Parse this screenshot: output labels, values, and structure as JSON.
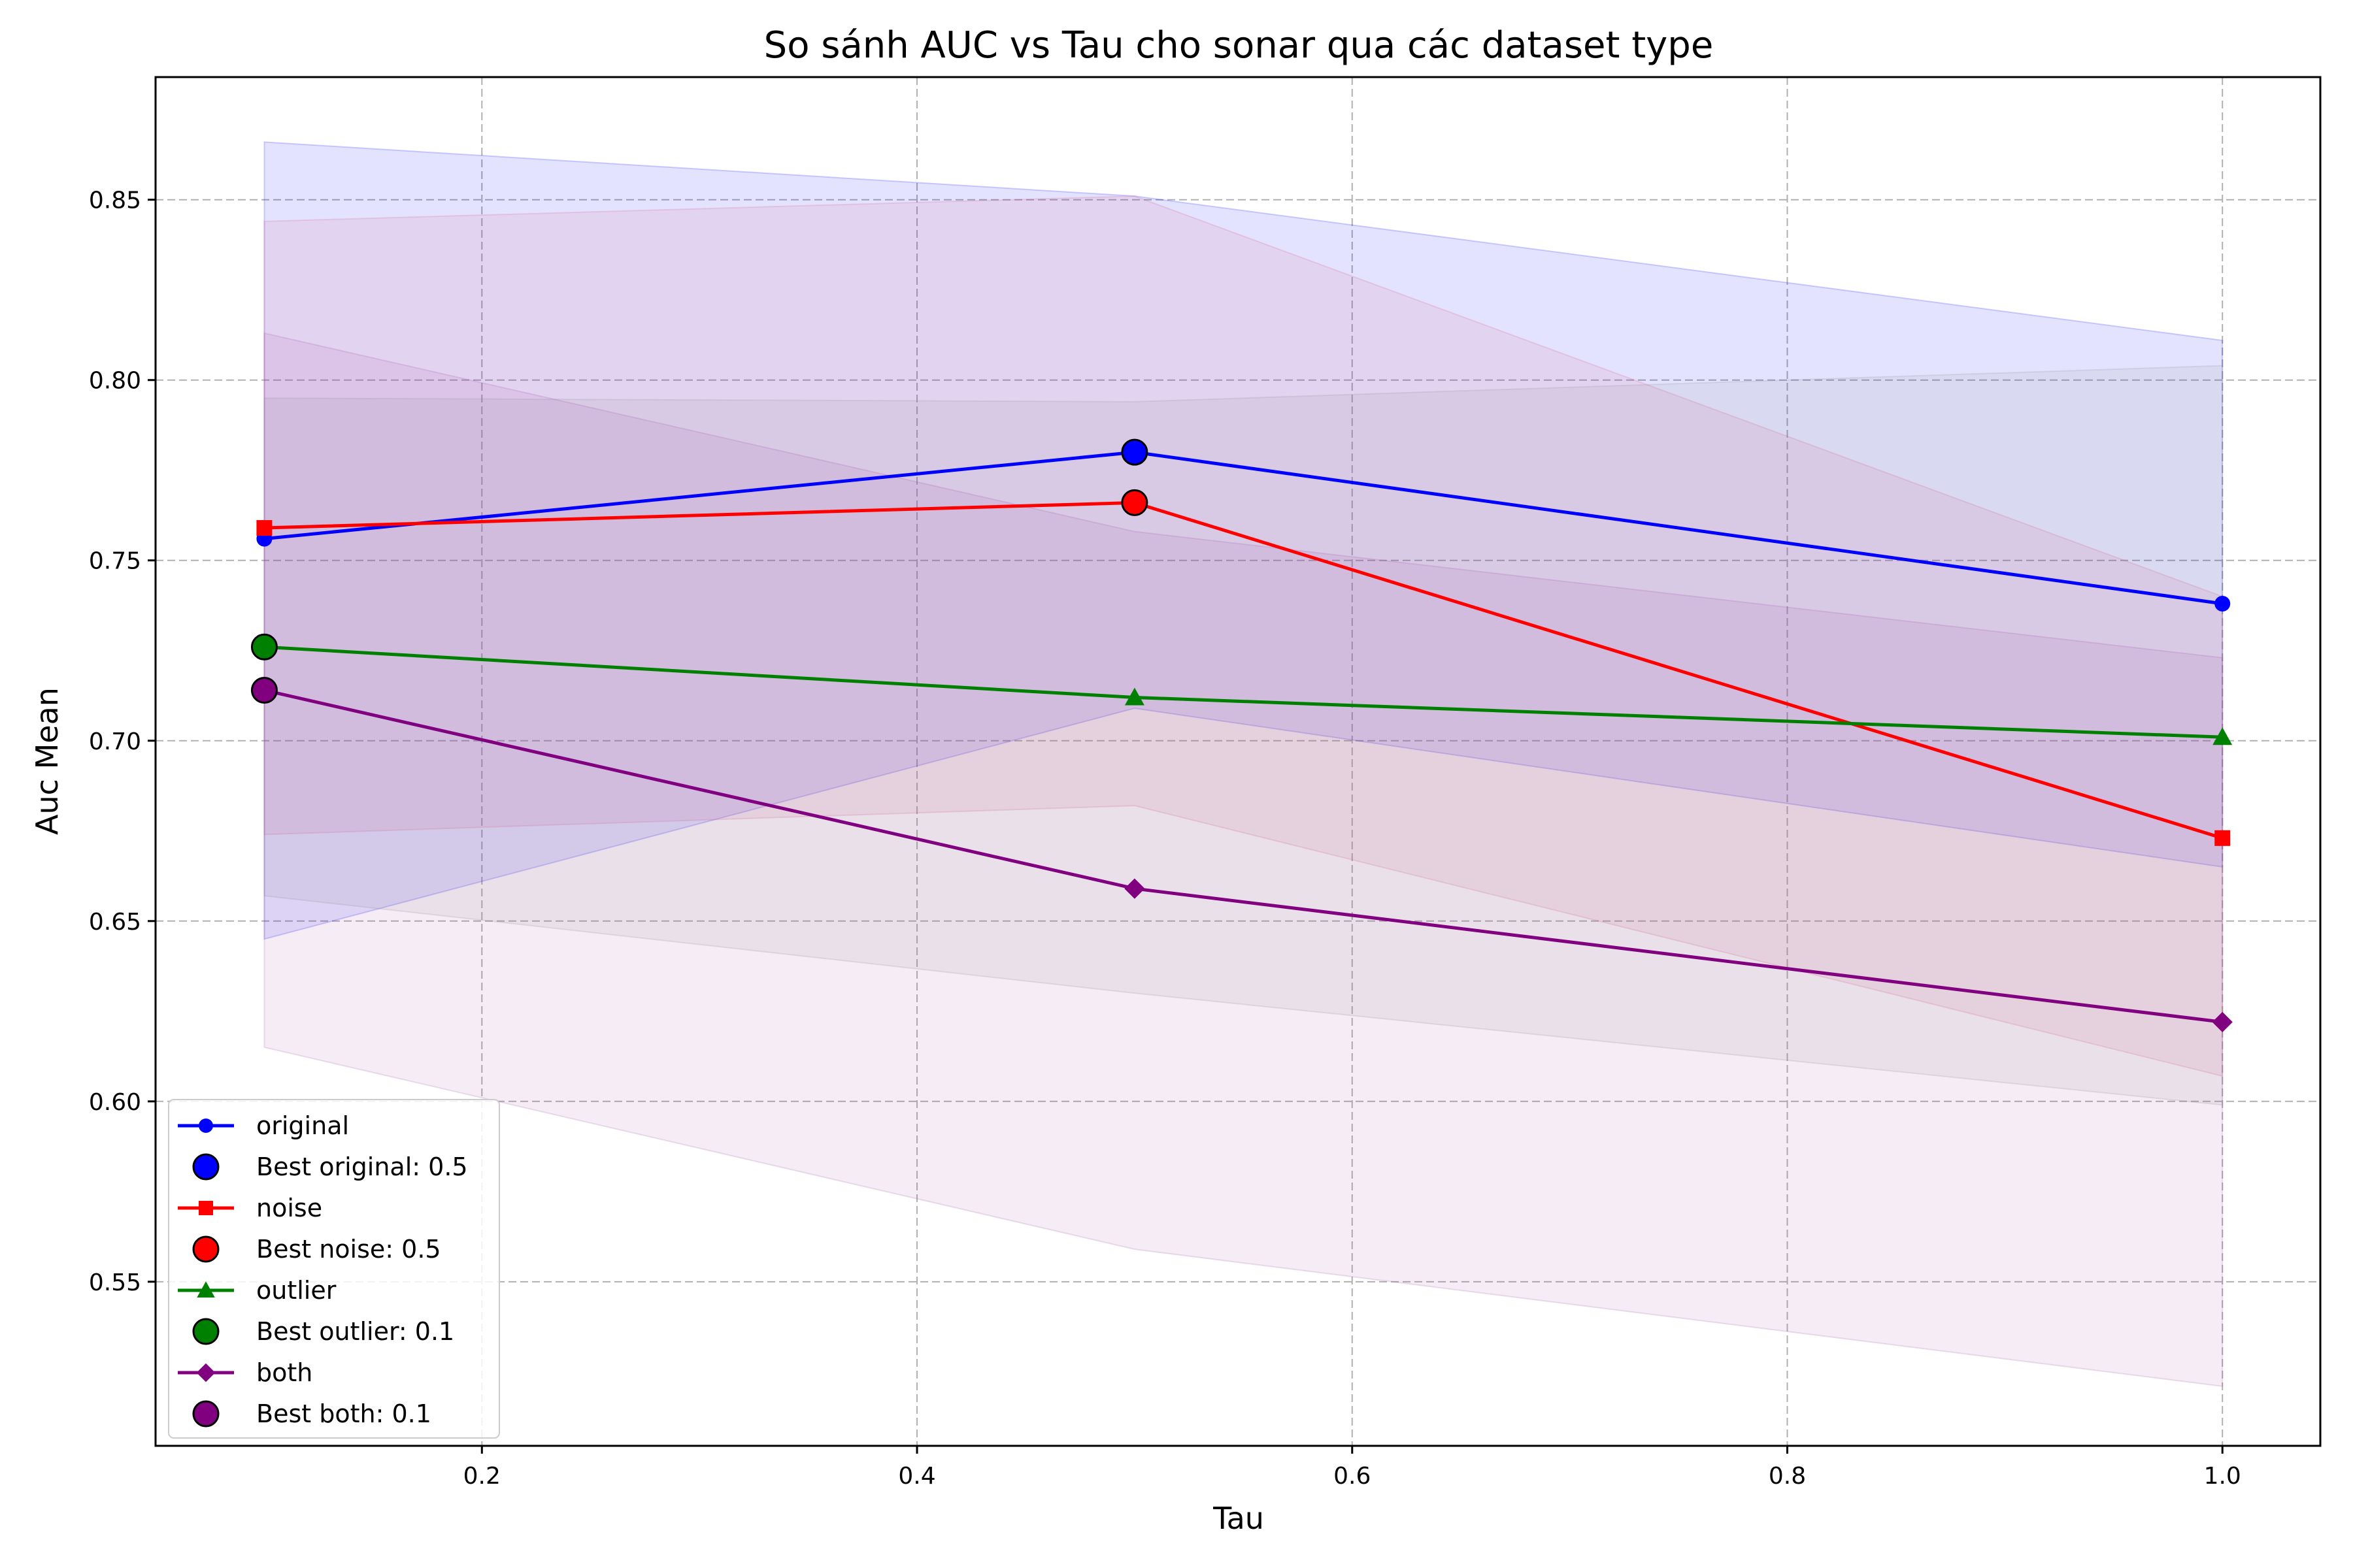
{
  "chart_data": {
    "type": "line",
    "title": "So sánh AUC vs Tau cho sonar qua các dataset type",
    "xlabel": "Tau",
    "ylabel": "Auc Mean",
    "xlim": [
      0.05,
      1.045
    ],
    "ylim": [
      0.5045,
      0.884
    ],
    "x_ticks": [
      0.2,
      0.4,
      0.6,
      0.8,
      1.0
    ],
    "x_tick_labels": [
      "0.2",
      "0.4",
      "0.6",
      "0.8",
      "1.0"
    ],
    "y_ticks": [
      0.55,
      0.6,
      0.65,
      0.7,
      0.75,
      0.8,
      0.85
    ],
    "y_tick_labels": [
      "0.55",
      "0.60",
      "0.65",
      "0.70",
      "0.75",
      "0.80",
      "0.85"
    ],
    "grid": true,
    "legend_position": "lower-left",
    "x": [
      0.1,
      0.5,
      1.0
    ],
    "series": [
      {
        "name": "original",
        "color": "#0000ff",
        "marker": "circle",
        "values": [
          0.756,
          0.78,
          0.738
        ],
        "band_upper": [
          0.866,
          0.851,
          0.811
        ],
        "band_lower": [
          0.645,
          0.709,
          0.665
        ],
        "band_color": "#0000ff",
        "best_label": "Best original: 0.5",
        "best_x": 0.5,
        "best_y": 0.78
      },
      {
        "name": "noise",
        "color": "#ff0000",
        "marker": "square",
        "values": [
          0.759,
          0.766,
          0.673
        ],
        "band_upper": [
          0.844,
          0.851,
          0.74
        ],
        "band_lower": [
          0.674,
          0.682,
          0.607
        ],
        "band_color": "#dd4f80",
        "best_label": "Best noise: 0.5",
        "best_x": 0.5,
        "best_y": 0.766
      },
      {
        "name": "outlier",
        "color": "#008000",
        "marker": "triangle",
        "values": [
          0.726,
          0.712,
          0.701
        ],
        "band_upper": [
          0.795,
          0.794,
          0.804
        ],
        "band_lower": [
          0.657,
          0.63,
          0.599
        ],
        "band_color": "#8a8a8a",
        "best_label": "Best outlier: 0.1",
        "best_x": 0.1,
        "best_y": 0.726
      },
      {
        "name": "both",
        "color": "#800080",
        "marker": "diamond",
        "values": [
          0.714,
          0.659,
          0.622
        ],
        "band_upper": [
          0.813,
          0.758,
          0.723
        ],
        "band_lower": [
          0.615,
          0.559,
          0.521
        ],
        "band_color": "#a050a8",
        "best_label": "Best both: 0.1",
        "best_x": 0.1,
        "best_y": 0.714
      }
    ]
  }
}
